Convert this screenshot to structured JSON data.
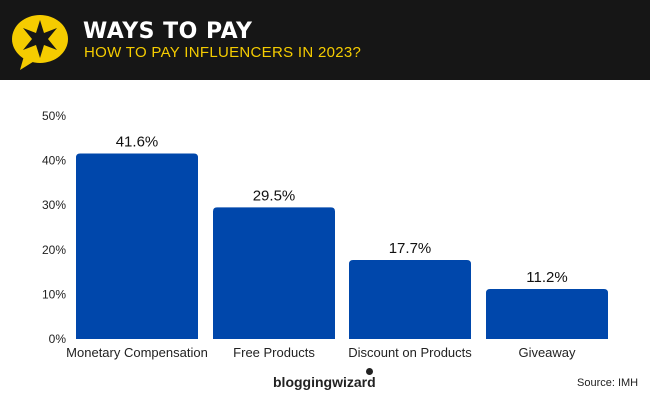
{
  "header": {
    "title": "WAYS TO PAY",
    "subtitle": "HOW TO PAY INFLUENCERS IN 2023?",
    "accent_color": "#f5cc00",
    "background_color": "#161616",
    "icon": "speech-bubble-star-icon"
  },
  "footer": {
    "brand": "bloggingwizard",
    "source": "Source: IMH"
  },
  "chart_data": {
    "type": "bar",
    "categories": [
      "Monetary Compensation",
      "Free Products",
      "Discount on Products",
      "Giveaway"
    ],
    "values": [
      41.6,
      29.5,
      17.7,
      11.2
    ],
    "value_labels": [
      "41.6%",
      "29.5%",
      "17.7%",
      "11.2%"
    ],
    "yticks": [
      "0%",
      "10%",
      "20%",
      "30%",
      "40%",
      "50%"
    ],
    "ylim": [
      0,
      50
    ],
    "bar_color": "#0047ab",
    "grid": false,
    "xlabel": "",
    "ylabel": ""
  }
}
